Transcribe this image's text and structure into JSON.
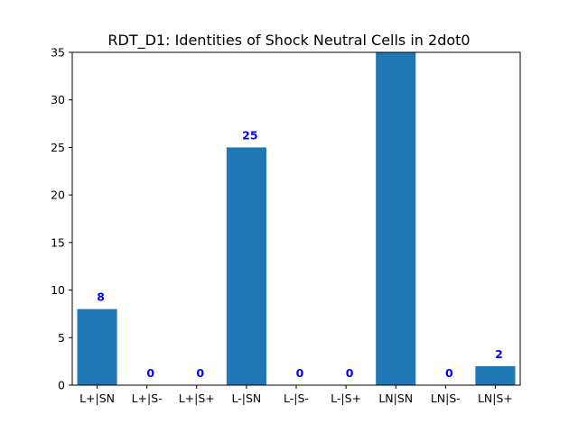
{
  "chart_data": {
    "type": "bar",
    "title": "RDT_D1: Identities of Shock Neutral Cells in 2dot0",
    "xlabel": "",
    "ylabel": "",
    "categories": [
      "L+|SN",
      "L+|S-",
      "L+|S+",
      "L-|SN",
      "L-|S-",
      "L-|S+",
      "LN|SN",
      "LN|S-",
      "LN|S+"
    ],
    "values": [
      8,
      0,
      0,
      25,
      0,
      0,
      35,
      0,
      2
    ],
    "data_labels": [
      "8",
      "0",
      "0",
      "25",
      "0",
      "0",
      "",
      "0",
      "2"
    ],
    "ylim": [
      0,
      35
    ],
    "yticks": [
      0,
      5,
      10,
      15,
      20,
      25,
      30,
      35
    ],
    "grid": false,
    "legend": "none",
    "bar_color": "#1f77b4",
    "label_color": "#0000ff"
  }
}
